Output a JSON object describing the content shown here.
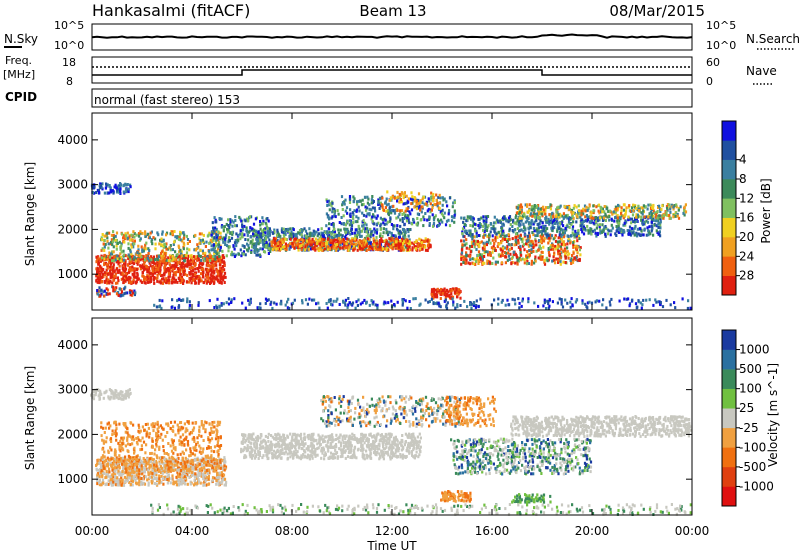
{
  "header": {
    "station": "Hankasalmi (fitACF)",
    "beam": "Beam 13",
    "date": "08/Mar/2015"
  },
  "noise_panel": {
    "left_label": "N.Sky",
    "right_label": "N.Search",
    "tick_top": "10^5",
    "tick_bottom": "10^0"
  },
  "freq_panel": {
    "left_label_line1": "Freq.",
    "left_label_line2": "[MHz]",
    "left_ticks": [
      "18",
      "8"
    ],
    "right_ticks": [
      "60",
      "0"
    ],
    "right_label": "Nave",
    "cpid_label": "CPID"
  },
  "cpid_text": "normal (fast stereo) 153",
  "chart_data": [
    {
      "type": "heatmap",
      "title": "Power",
      "ylabel": "Slant Range [km]",
      "xlabel": "Time UT",
      "xlim": [
        "00:00",
        "24:00"
      ],
      "ylim": [
        200,
        4600
      ],
      "y_ticks": [
        "1000",
        "2000",
        "3000",
        "4000"
      ],
      "x_ticks": [
        "00:00",
        "04:00",
        "08:00",
        "12:00",
        "16:00",
        "20:00",
        "00:00"
      ],
      "colorbar": {
        "label": "Power [dB]",
        "ticks": [
          "4",
          "8",
          "12",
          "16",
          "20",
          "24",
          "28"
        ],
        "colors": [
          "#1010e0",
          "#2050a0",
          "#3a7fa0",
          "#3c8a5a",
          "#80c060",
          "#f0d020",
          "#f0a020",
          "#f06010",
          "#e02010"
        ]
      }
    },
    {
      "type": "heatmap",
      "title": "Velocity",
      "ylabel": "Slant Range [km]",
      "xlabel": "Time UT",
      "xlim": [
        "00:00",
        "24:00"
      ],
      "ylim": [
        200,
        4600
      ],
      "y_ticks": [
        "1000",
        "2000",
        "3000",
        "4000"
      ],
      "x_ticks": [
        "00:00",
        "04:00",
        "08:00",
        "12:00",
        "16:00",
        "20:00",
        "00:00"
      ],
      "colorbar": {
        "label": "Velocity [m s^-1]",
        "ticks": [
          "1000",
          "500",
          "100",
          "25",
          "-25",
          "-100",
          "-500",
          "-1000"
        ],
        "colors": [
          "#1a3aa0",
          "#2a70a0",
          "#3a8a5a",
          "#70c040",
          "#c8c8c0",
          "#f0a040",
          "#f07010",
          "#e04010",
          "#e01010"
        ]
      }
    }
  ]
}
